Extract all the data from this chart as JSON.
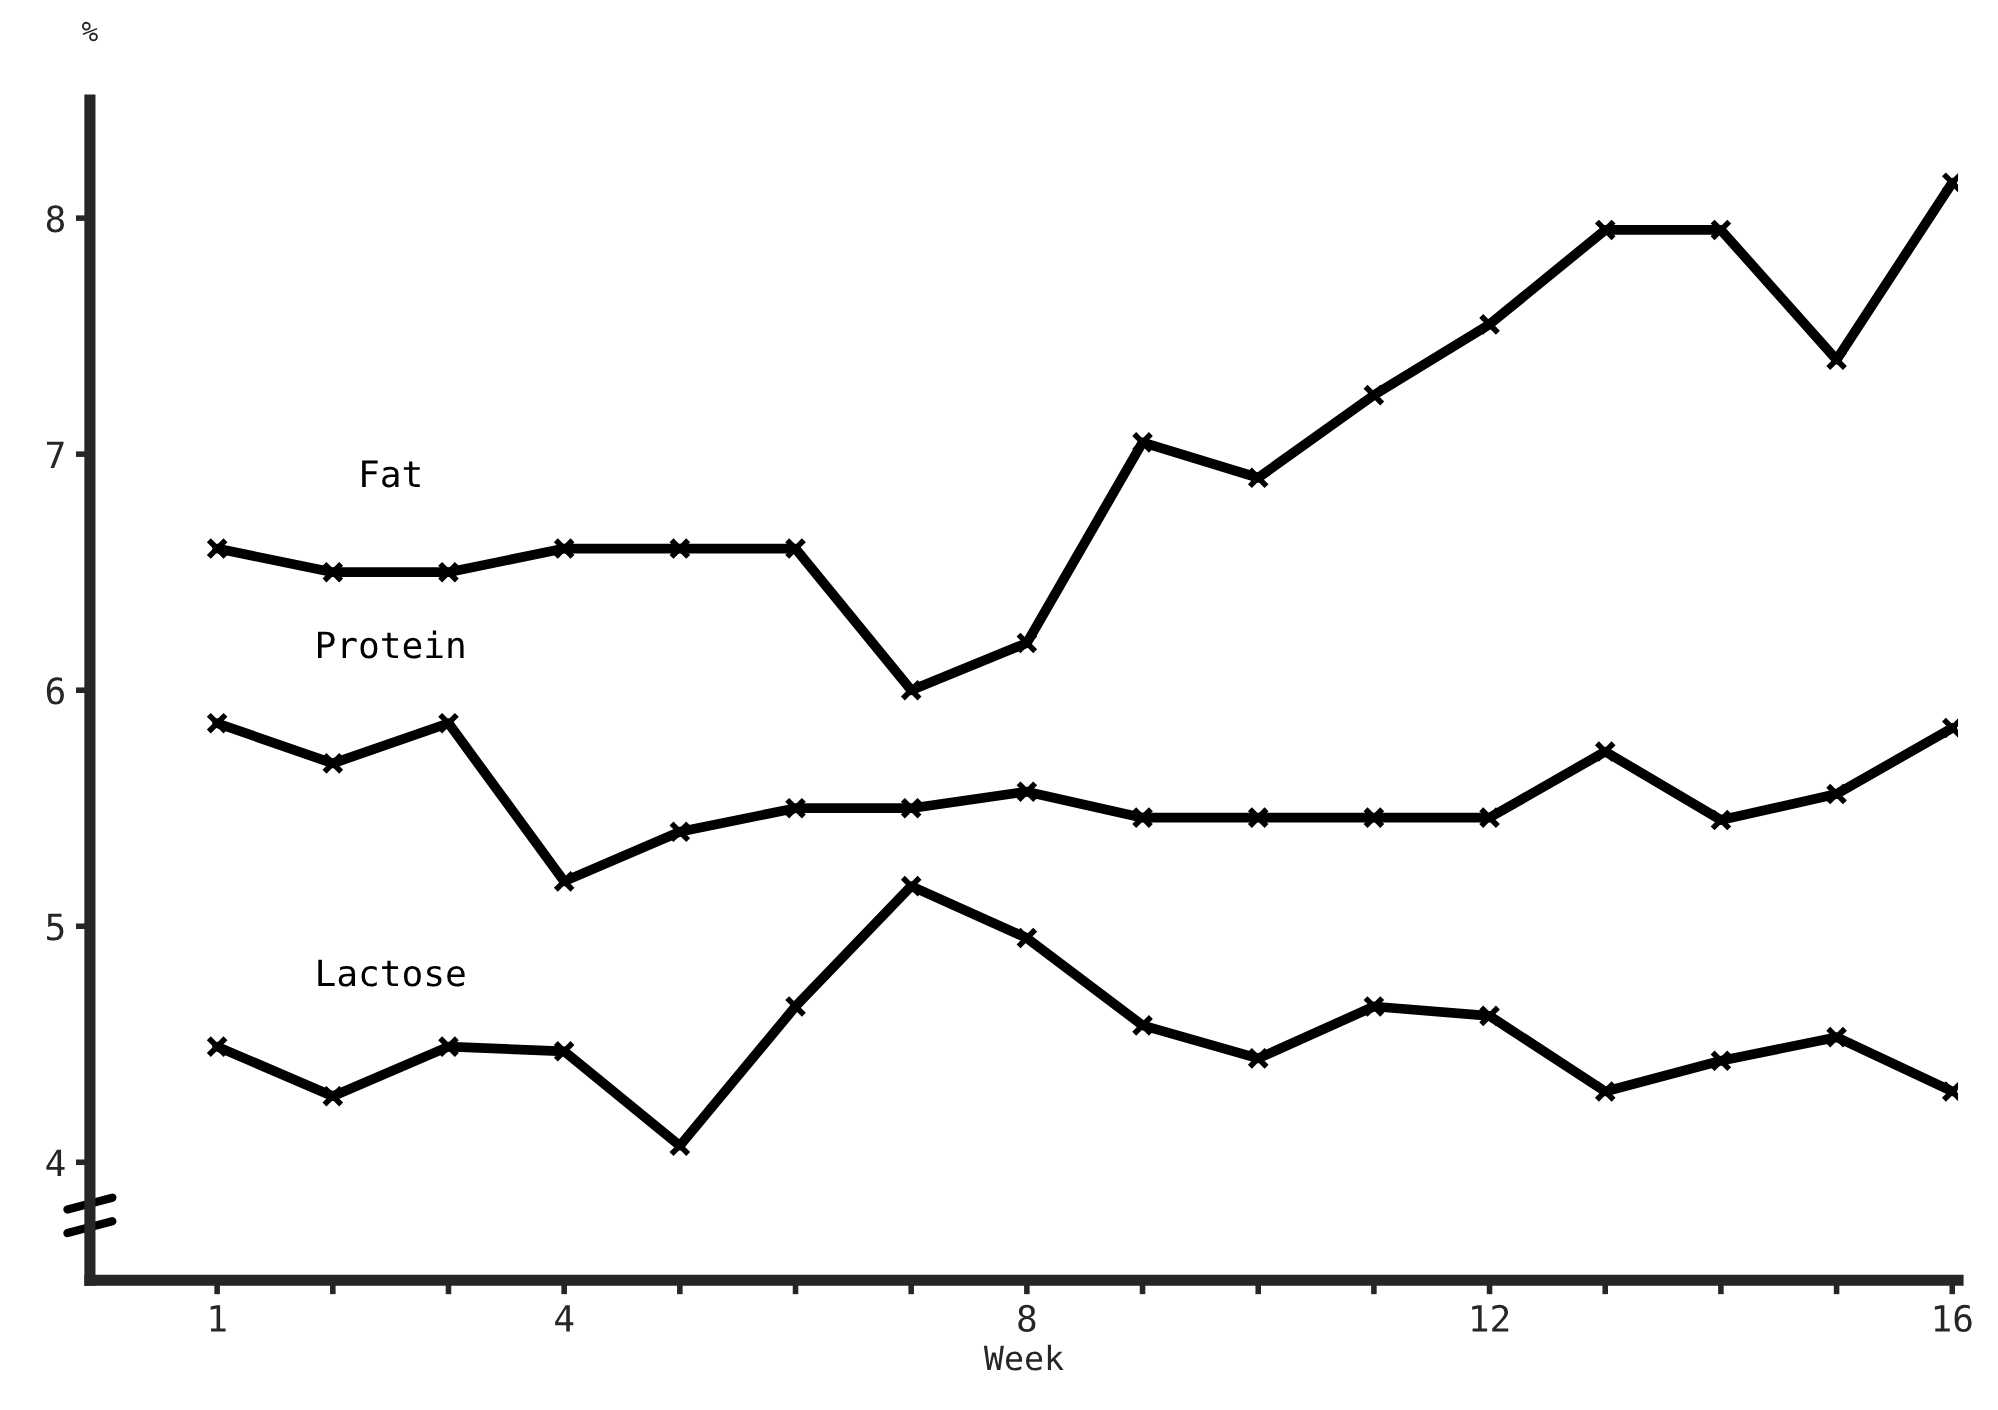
{
  "chart_data": {
    "type": "line",
    "xlabel": "Week",
    "ylabel": "%",
    "x": [
      1,
      2,
      3,
      4,
      5,
      6,
      7,
      8,
      9,
      10,
      11,
      12,
      13,
      14,
      15,
      16
    ],
    "series": [
      {
        "name": "Fat",
        "color": "#000000",
        "values": [
          6.6,
          6.5,
          6.5,
          6.6,
          6.6,
          6.6,
          6.0,
          6.2,
          7.05,
          6.9,
          7.25,
          7.55,
          7.95,
          7.95,
          7.4,
          8.15
        ]
      },
      {
        "name": "Protein",
        "color": "#000000",
        "values": [
          5.86,
          5.69,
          5.86,
          5.19,
          5.4,
          5.5,
          5.5,
          5.57,
          5.46,
          5.46,
          5.46,
          5.46,
          5.74,
          5.45,
          5.56,
          5.84
        ]
      },
      {
        "name": "Lactose",
        "color": "#000000",
        "values": [
          4.49,
          4.28,
          4.49,
          4.47,
          4.07,
          4.66,
          5.17,
          4.95,
          4.58,
          4.44,
          4.66,
          4.62,
          4.3,
          4.43,
          4.53,
          4.3
        ]
      }
    ],
    "xlim": [
      -0.1,
      16.05
    ],
    "xticks": [
      1,
      {
        "value": 2,
        "label": null
      },
      {
        "value": 3,
        "label": null
      },
      4,
      {
        "value": 5,
        "label": null
      },
      {
        "value": 6,
        "label": null
      },
      {
        "value": 7,
        "label": null
      },
      8,
      {
        "value": 9,
        "label": null
      },
      {
        "value": 10,
        "label": null
      },
      {
        "value": 11,
        "label": null
      },
      12,
      {
        "value": 13,
        "label": null
      },
      {
        "value": 14,
        "label": null
      },
      {
        "value": 15,
        "label": null
      },
      16
    ],
    "ylim": [
      3.5,
      8.5
    ],
    "yticks": [
      4,
      5,
      6,
      7,
      8
    ],
    "grid": false,
    "legend": false,
    "marker": "cross",
    "line_style": "solid"
  }
}
